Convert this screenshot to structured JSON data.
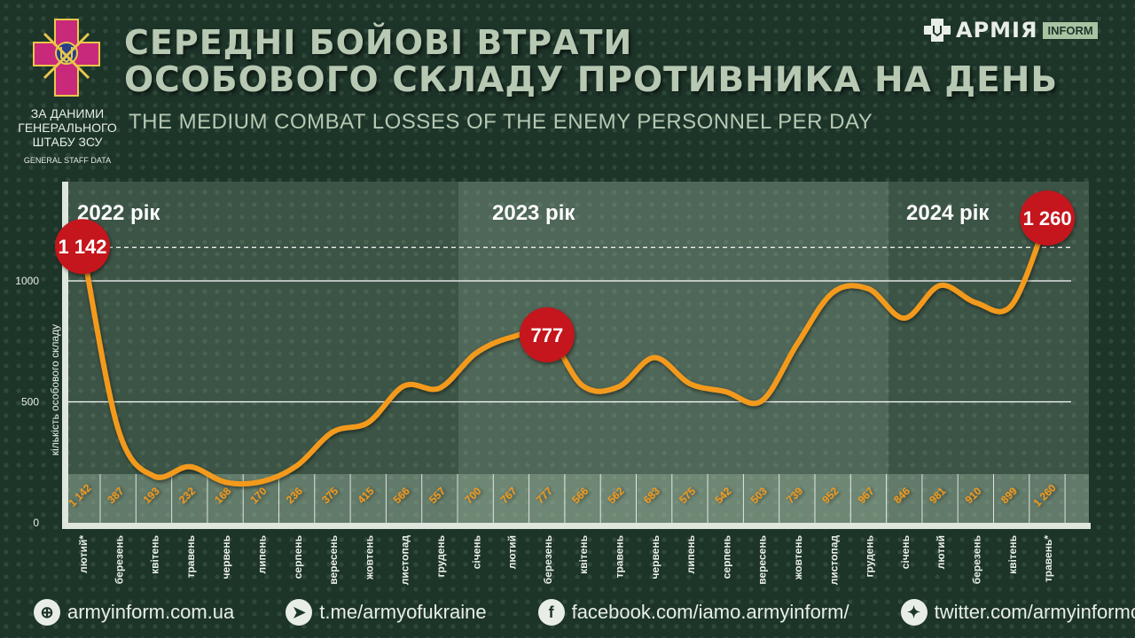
{
  "header": {
    "title_line1": "СЕРЕДНІ БОЙОВІ ВТРАТИ",
    "title_line2": "ОСОБОВОГО СКЛАДУ ПРОТИВНИКА НА ДЕНЬ",
    "subtitle": "THE MEDIUM COMBAT LOSSES OF THE ENEMY PERSONNEL PER DAY"
  },
  "source": {
    "line1": "ЗА ДАНИМИ",
    "line2": "ГЕНЕРАЛЬНОГО",
    "line3": "ШТАБУ ЗСУ",
    "en": "GENERAL STAFF DATA"
  },
  "logo": {
    "name": "АРМІЯ",
    "tag": "INFORM"
  },
  "footer": {
    "site": "armyinform.com.ua",
    "telegram": "t.me/armyofukraine",
    "facebook": "facebook.com/iamo.armyinform/",
    "twitter": "twitter.com/armyinformcomua"
  },
  "colors": {
    "line": "#f39a1e",
    "highlight": "#c4161c",
    "panel": "#8fa994"
  },
  "chart_data": {
    "type": "line",
    "title": "СЕРЕДНІ БОЙОВІ ВТРАТИ ОСОБОВОГО СКЛАДУ ПРОТИВНИКА НА ДЕНЬ",
    "ylabel": "кількість особового складу",
    "ylim": [
      0,
      1300
    ],
    "yticks": [
      "0",
      "500",
      "1000"
    ],
    "years": [
      "2022 рік",
      "2023 рік",
      "2024 рік"
    ],
    "categories": [
      "лютий*",
      "березень",
      "квітень",
      "травень",
      "червень",
      "липень",
      "серпень",
      "вересень",
      "жовтень",
      "листопад",
      "грудень",
      "січень",
      "лютий",
      "березень",
      "квітень",
      "травень",
      "червень",
      "липень",
      "серпень",
      "вересень",
      "жовтень",
      "листопад",
      "грудень",
      "січень",
      "лютий",
      "березень",
      "квітень",
      "травень*"
    ],
    "values": [
      1142,
      387,
      193,
      232,
      168,
      170,
      236,
      375,
      415,
      566,
      557,
      700,
      767,
      777,
      566,
      562,
      683,
      575,
      542,
      503,
      739,
      952,
      967,
      846,
      981,
      910,
      899,
      1260
    ],
    "labels": [
      "1 142",
      "387",
      "193",
      "232",
      "168",
      "170",
      "236",
      "375",
      "415",
      "566",
      "557",
      "700",
      "767",
      "777",
      "566",
      "562",
      "683",
      "575",
      "542",
      "503",
      "739",
      "952",
      "967",
      "846",
      "981",
      "910",
      "899",
      "1 260"
    ],
    "highlights": [
      {
        "index": 0,
        "label": "1 142"
      },
      {
        "index": 13,
        "label": "777"
      },
      {
        "index": 27,
        "label": "1 260"
      }
    ]
  }
}
